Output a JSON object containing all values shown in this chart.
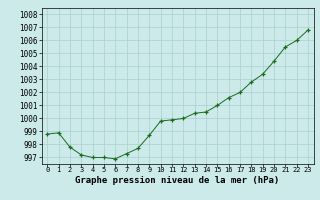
{
  "hours": [
    0,
    1,
    2,
    3,
    4,
    5,
    6,
    7,
    8,
    9,
    10,
    11,
    12,
    13,
    14,
    15,
    16,
    17,
    18,
    19,
    20,
    21,
    22,
    23
  ],
  "pressure": [
    998.8,
    998.9,
    997.8,
    997.2,
    997.0,
    997.0,
    996.9,
    997.3,
    997.7,
    998.7,
    999.8,
    999.9,
    1000.0,
    1000.4,
    1000.5,
    1001.0,
    1001.6,
    1002.0,
    1002.8,
    1003.4,
    1004.4,
    1005.5,
    1006.0,
    1006.8
  ],
  "title": "Graphe pression niveau de la mer (hPa)",
  "line_color": "#1a6b1a",
  "marker": "+",
  "bg_color": "#cceaea",
  "grid_color": "#aacece",
  "ylim_min": 996.5,
  "ylim_max": 1008.5,
  "yticks": [
    997,
    998,
    999,
    1000,
    1001,
    1002,
    1003,
    1004,
    1005,
    1006,
    1007,
    1008
  ]
}
